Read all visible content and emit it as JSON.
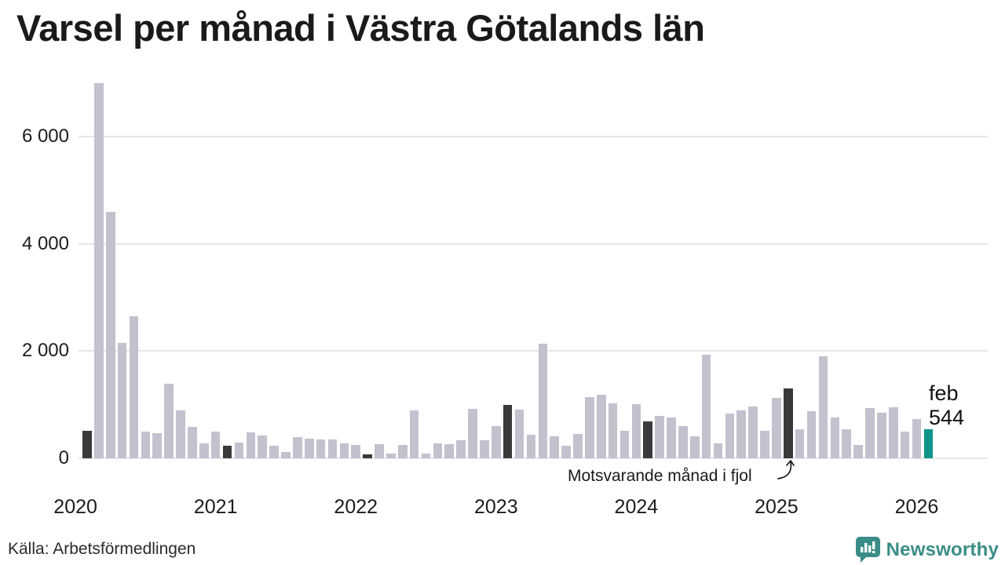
{
  "title": "Varsel per månad i Västra Götalands län",
  "source": "Källa: Arbetsförmedlingen",
  "brand": {
    "name": "Newsworthy"
  },
  "annotation": {
    "text": "Motsvarande månad i fjol"
  },
  "last_point_label": {
    "line1": "feb",
    "line2": "544"
  },
  "colors": {
    "bar_default": "#c3c1ce",
    "bar_fjol": "#3a3a3c",
    "bar_latest": "#0f9489",
    "grid": "#e6e5ec",
    "brand": "#3a8d87"
  },
  "chart_data": {
    "type": "bar",
    "title": "Varsel per månad i Västra Götalands län",
    "xlabel": "",
    "ylabel": "",
    "ylim": [
      0,
      7100
    ],
    "yticks": [
      0,
      2000,
      4000,
      6000
    ],
    "ytick_labels": [
      "0",
      "2 000",
      "4 000",
      "6 000"
    ],
    "xtick_labels": [
      "2020",
      "2021",
      "2022",
      "2023",
      "2024",
      "2025",
      "2026"
    ],
    "legend_note": "dark bars = same month in previous years (February), teal bar = latest month",
    "bars": [
      {
        "month": "feb 2020",
        "value": 510,
        "kind": "fjol"
      },
      {
        "month": "mar 2020",
        "value": 7000,
        "kind": "default"
      },
      {
        "month": "apr 2020",
        "value": 4600,
        "kind": "default"
      },
      {
        "month": "maj 2020",
        "value": 2150,
        "kind": "default"
      },
      {
        "month": "jun 2020",
        "value": 2650,
        "kind": "default"
      },
      {
        "month": "jul 2020",
        "value": 500,
        "kind": "default"
      },
      {
        "month": "aug 2020",
        "value": 465,
        "kind": "default"
      },
      {
        "month": "sep 2020",
        "value": 1390,
        "kind": "default"
      },
      {
        "month": "okt 2020",
        "value": 900,
        "kind": "default"
      },
      {
        "month": "nov 2020",
        "value": 580,
        "kind": "default"
      },
      {
        "month": "dec 2020",
        "value": 280,
        "kind": "default"
      },
      {
        "month": "jan 2021",
        "value": 500,
        "kind": "default"
      },
      {
        "month": "feb 2021",
        "value": 240,
        "kind": "fjol"
      },
      {
        "month": "mar 2021",
        "value": 295,
        "kind": "default"
      },
      {
        "month": "apr 2021",
        "value": 480,
        "kind": "default"
      },
      {
        "month": "maj 2021",
        "value": 420,
        "kind": "default"
      },
      {
        "month": "jun 2021",
        "value": 240,
        "kind": "default"
      },
      {
        "month": "jul 2021",
        "value": 120,
        "kind": "default"
      },
      {
        "month": "aug 2021",
        "value": 400,
        "kind": "default"
      },
      {
        "month": "sep 2021",
        "value": 365,
        "kind": "default"
      },
      {
        "month": "okt 2021",
        "value": 350,
        "kind": "default"
      },
      {
        "month": "nov 2021",
        "value": 350,
        "kind": "default"
      },
      {
        "month": "dec 2021",
        "value": 280,
        "kind": "default"
      },
      {
        "month": "jan 2022",
        "value": 250,
        "kind": "default"
      },
      {
        "month": "feb 2022",
        "value": 70,
        "kind": "fjol"
      },
      {
        "month": "mar 2022",
        "value": 265,
        "kind": "default"
      },
      {
        "month": "apr 2022",
        "value": 85,
        "kind": "default"
      },
      {
        "month": "maj 2022",
        "value": 255,
        "kind": "default"
      },
      {
        "month": "jun 2022",
        "value": 890,
        "kind": "default"
      },
      {
        "month": "jul 2022",
        "value": 85,
        "kind": "default"
      },
      {
        "month": "aug 2022",
        "value": 280,
        "kind": "default"
      },
      {
        "month": "sep 2022",
        "value": 265,
        "kind": "default"
      },
      {
        "month": "okt 2022",
        "value": 340,
        "kind": "default"
      },
      {
        "month": "nov 2022",
        "value": 925,
        "kind": "default"
      },
      {
        "month": "dec 2022",
        "value": 340,
        "kind": "default"
      },
      {
        "month": "jan 2023",
        "value": 605,
        "kind": "default"
      },
      {
        "month": "feb 2023",
        "value": 990,
        "kind": "fjol"
      },
      {
        "month": "mar 2023",
        "value": 915,
        "kind": "default"
      },
      {
        "month": "apr 2023",
        "value": 435,
        "kind": "default"
      },
      {
        "month": "maj 2023",
        "value": 2140,
        "kind": "default"
      },
      {
        "month": "jun 2023",
        "value": 410,
        "kind": "default"
      },
      {
        "month": "jul 2023",
        "value": 230,
        "kind": "default"
      },
      {
        "month": "aug 2023",
        "value": 450,
        "kind": "default"
      },
      {
        "month": "sep 2023",
        "value": 1145,
        "kind": "default"
      },
      {
        "month": "okt 2023",
        "value": 1185,
        "kind": "default"
      },
      {
        "month": "nov 2023",
        "value": 1025,
        "kind": "default"
      },
      {
        "month": "dec 2023",
        "value": 510,
        "kind": "default"
      },
      {
        "month": "jan 2024",
        "value": 1005,
        "kind": "default"
      },
      {
        "month": "feb 2024",
        "value": 685,
        "kind": "fjol"
      },
      {
        "month": "mar 2024",
        "value": 790,
        "kind": "default"
      },
      {
        "month": "apr 2024",
        "value": 755,
        "kind": "default"
      },
      {
        "month": "maj 2024",
        "value": 600,
        "kind": "default"
      },
      {
        "month": "jun 2024",
        "value": 415,
        "kind": "default"
      },
      {
        "month": "jul 2024",
        "value": 1930,
        "kind": "default"
      },
      {
        "month": "aug 2024",
        "value": 280,
        "kind": "default"
      },
      {
        "month": "sep 2024",
        "value": 830,
        "kind": "default"
      },
      {
        "month": "okt 2024",
        "value": 890,
        "kind": "default"
      },
      {
        "month": "nov 2024",
        "value": 960,
        "kind": "default"
      },
      {
        "month": "dec 2024",
        "value": 515,
        "kind": "default"
      },
      {
        "month": "jan 2025",
        "value": 1130,
        "kind": "default"
      },
      {
        "month": "feb 2025",
        "value": 1300,
        "kind": "fjol"
      },
      {
        "month": "mar 2025",
        "value": 540,
        "kind": "default"
      },
      {
        "month": "apr 2025",
        "value": 875,
        "kind": "default"
      },
      {
        "month": "maj 2025",
        "value": 1905,
        "kind": "default"
      },
      {
        "month": "jun 2025",
        "value": 760,
        "kind": "default"
      },
      {
        "month": "jul 2025",
        "value": 545,
        "kind": "default"
      },
      {
        "month": "aug 2025",
        "value": 255,
        "kind": "default"
      },
      {
        "month": "sep 2025",
        "value": 940,
        "kind": "default"
      },
      {
        "month": "okt 2025",
        "value": 855,
        "kind": "default"
      },
      {
        "month": "nov 2025",
        "value": 945,
        "kind": "default"
      },
      {
        "month": "dec 2025",
        "value": 505,
        "kind": "default"
      },
      {
        "month": "jan 2026",
        "value": 730,
        "kind": "default"
      },
      {
        "month": "feb 2026",
        "value": 544,
        "kind": "latest"
      }
    ]
  }
}
